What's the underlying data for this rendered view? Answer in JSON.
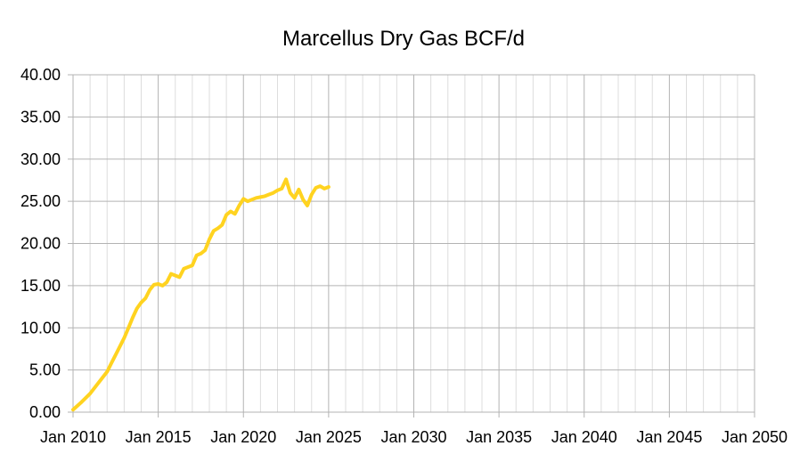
{
  "chart_data": {
    "type": "line",
    "title": "Marcellus Dry Gas BCF/d",
    "xlabel": "",
    "ylabel": "",
    "x_ticks": [
      "Jan 2010",
      "Jan 2015",
      "Jan 2020",
      "Jan 2025",
      "Jan 2030",
      "Jan 2035",
      "Jan 2040",
      "Jan 2045",
      "Jan 2050"
    ],
    "y_ticks": [
      "0.00",
      "5.00",
      "10.00",
      "15.00",
      "20.00",
      "25.00",
      "30.00",
      "35.00",
      "40.00"
    ],
    "xlim": [
      "2010-01",
      "2050-01"
    ],
    "ylim": [
      0,
      40
    ],
    "grid": true,
    "legend": "none",
    "series": [
      {
        "color": "#ffd320",
        "x": [
          "2010-01",
          "2010-07",
          "2011-01",
          "2011-07",
          "2012-01",
          "2012-04",
          "2012-07",
          "2012-10",
          "2013-01",
          "2013-04",
          "2013-07",
          "2013-10",
          "2014-01",
          "2014-04",
          "2014-07",
          "2014-10",
          "2015-01",
          "2015-04",
          "2015-07",
          "2015-10",
          "2016-01",
          "2016-04",
          "2016-07",
          "2016-10",
          "2017-01",
          "2017-04",
          "2017-07",
          "2017-10",
          "2018-01",
          "2018-04",
          "2018-07",
          "2018-10",
          "2019-01",
          "2019-04",
          "2019-07",
          "2019-10",
          "2020-01",
          "2020-04",
          "2020-07",
          "2020-10",
          "2021-01",
          "2021-04",
          "2021-07",
          "2021-10",
          "2022-01",
          "2022-04",
          "2022-07",
          "2022-10",
          "2023-01",
          "2023-04",
          "2023-07",
          "2023-10",
          "2024-01",
          "2024-04",
          "2024-07",
          "2024-10",
          "2025-01"
        ],
        "y": [
          0.3,
          1.2,
          2.2,
          3.5,
          4.8,
          5.8,
          6.8,
          7.8,
          8.8,
          10.0,
          11.2,
          12.3,
          13.0,
          13.5,
          14.5,
          15.1,
          15.2,
          15.0,
          15.4,
          16.4,
          16.2,
          16.0,
          17.0,
          17.2,
          17.4,
          18.6,
          18.8,
          19.2,
          20.5,
          21.5,
          21.8,
          22.2,
          23.4,
          23.8,
          23.5,
          24.5,
          25.3,
          25.0,
          25.2,
          25.4,
          25.5,
          25.6,
          25.8,
          26.0,
          26.3,
          26.5,
          27.6,
          26.0,
          25.4,
          26.4,
          25.2,
          24.5,
          25.8,
          26.6,
          26.8,
          26.5,
          26.7
        ]
      }
    ]
  }
}
